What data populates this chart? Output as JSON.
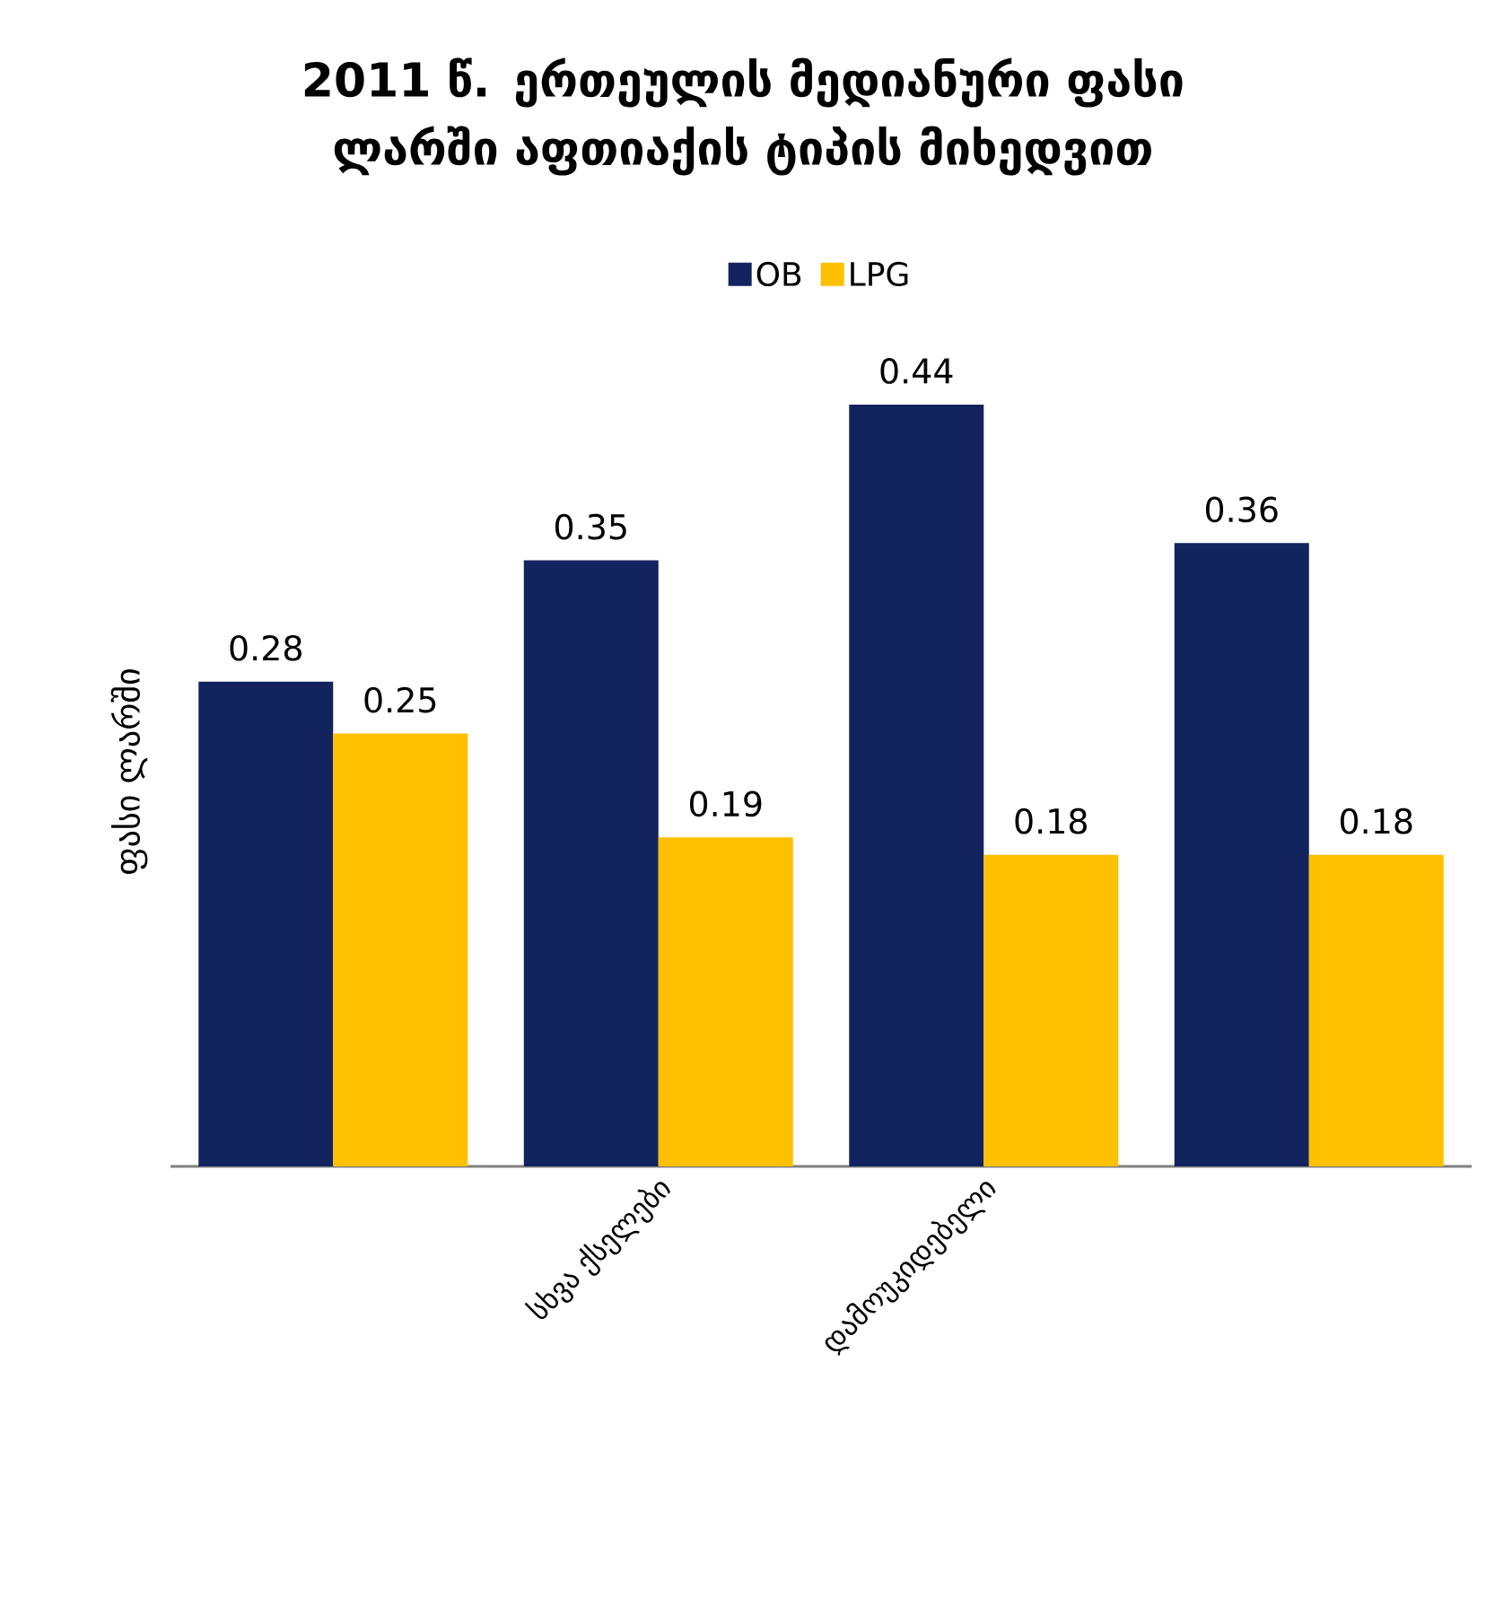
{
  "chart_data": {
    "type": "bar",
    "title": "2011 წ. ერთეულის მედიანური ფასი ლარში აფთიაქის ტიპის მიხედვით",
    "ylabel": "ფასი ლარში",
    "categories": [
      null,
      "სხვა ქსელები",
      "დამოუკიდებელი",
      null
    ],
    "series": [
      {
        "name": "OB",
        "color": "#13235e",
        "values": [
          0.28,
          0.35,
          0.44,
          0.36
        ]
      },
      {
        "name": "LPG",
        "color": "#ffc000",
        "values": [
          0.25,
          0.19,
          0.18,
          0.18
        ]
      }
    ],
    "data_labels": true,
    "legend": "top"
  }
}
